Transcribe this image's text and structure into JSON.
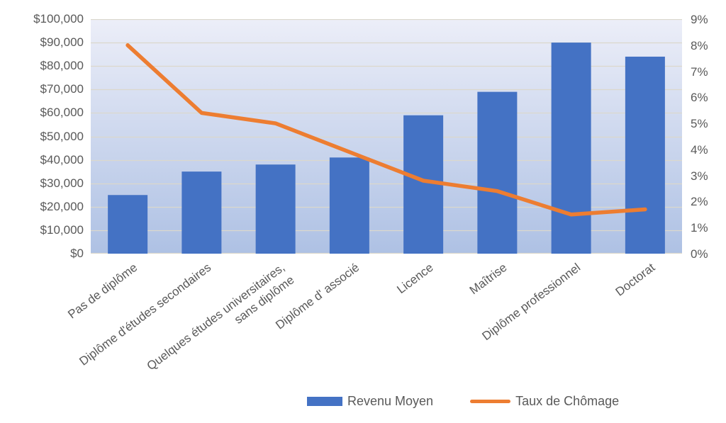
{
  "chart_data": {
    "type": "bar+line",
    "categories": [
      "Pas de diplôme",
      "Diplôme d'études secondaires",
      "Quelques études universitaires,\nsans diplôme",
      "Diplôme d' associé",
      "Licence",
      "Maîtrise",
      "Diplôme professionnel",
      "Doctorat"
    ],
    "series": [
      {
        "name": "Revenu Moyen",
        "type": "bar",
        "axis": "left",
        "color": "#4472C4",
        "values": [
          25000,
          35000,
          38000,
          41000,
          59000,
          69000,
          90000,
          84000
        ]
      },
      {
        "name": "Taux de Chômage",
        "type": "line",
        "axis": "right",
        "color": "#ED7D31",
        "values": [
          8.0,
          5.4,
          5.0,
          3.9,
          2.8,
          2.4,
          1.5,
          1.7
        ]
      }
    ],
    "left_axis": {
      "min": 0,
      "max": 100000,
      "tick_labels": [
        "$100,000",
        "$90,000",
        "$80,000",
        "$70,000",
        "$60,000",
        "$50,000",
        "$40,000",
        "$30,000",
        "$20,000",
        "$10,000",
        "$0"
      ]
    },
    "right_axis": {
      "min": 0,
      "max": 9,
      "tick_labels": [
        "9%",
        "8%",
        "7%",
        "6%",
        "5%",
        "4%",
        "3%",
        "2%",
        "1%",
        "0%"
      ]
    },
    "grid": true,
    "legend_position": "bottom",
    "colors": {
      "plot_bg_top": "#ECEEF8",
      "plot_bg_bottom": "#AEC1E4",
      "gridline": "#DBD8CC",
      "text": "#595959"
    }
  }
}
